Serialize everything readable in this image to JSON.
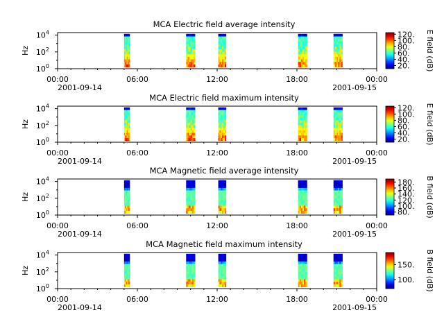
{
  "figure": {
    "background": "#ffffff"
  },
  "chart_data": [
    {
      "type": "heatmap",
      "title": "MCA  Electric field average intensity",
      "ylabel": "Hz",
      "colorbar_label": "E field (dB)",
      "colorbar_ticks": [
        "20.",
        "40.",
        "60.",
        "80.",
        "100.",
        "120."
      ],
      "colorbar_range": [
        10,
        125
      ],
      "yticks": [
        {
          "base": "10",
          "exp": "0"
        },
        {
          "base": "10",
          "exp": "2"
        },
        {
          "base": "10",
          "exp": "4"
        }
      ],
      "xticks": [
        "00:00",
        "06:00",
        "12:00",
        "18:00",
        "00:00"
      ],
      "date_start": "2001-09-14",
      "date_end": "2001-09-15",
      "style": "E",
      "intervals": [
        [
          "05:00",
          "05:25"
        ],
        [
          "09:40",
          "10:20"
        ],
        [
          "12:05",
          "12:40"
        ],
        [
          "18:05",
          "18:45"
        ],
        [
          "20:45",
          "21:25"
        ]
      ]
    },
    {
      "type": "heatmap",
      "title": "MCA  Electric field maximum intensity",
      "ylabel": "Hz",
      "colorbar_label": "E field (dB)",
      "colorbar_ticks": [
        "20.",
        "40.",
        "60.",
        "80.",
        "100.",
        "120."
      ],
      "colorbar_range": [
        10,
        125
      ],
      "yticks": [
        {
          "base": "10",
          "exp": "0"
        },
        {
          "base": "10",
          "exp": "2"
        },
        {
          "base": "10",
          "exp": "4"
        }
      ],
      "xticks": [
        "00:00",
        "06:00",
        "12:00",
        "18:00",
        "00:00"
      ],
      "date_start": "2001-09-14",
      "date_end": "2001-09-15",
      "style": "E",
      "intervals": [
        [
          "05:00",
          "05:25"
        ],
        [
          "09:40",
          "10:20"
        ],
        [
          "12:05",
          "12:40"
        ],
        [
          "18:05",
          "18:45"
        ],
        [
          "20:45",
          "21:25"
        ]
      ]
    },
    {
      "type": "heatmap",
      "title": "MCA  Magnetic field average intensity",
      "ylabel": "Hz",
      "colorbar_label": "B field (dB)",
      "colorbar_ticks": [
        "80.",
        "100.",
        "120.",
        "140.",
        "160.",
        "180."
      ],
      "colorbar_range": [
        70,
        190
      ],
      "yticks": [
        {
          "base": "10",
          "exp": "0"
        },
        {
          "base": "10",
          "exp": "2"
        },
        {
          "base": "10",
          "exp": "4"
        }
      ],
      "xticks": [
        "00:00",
        "06:00",
        "12:00",
        "18:00",
        "00:00"
      ],
      "date_start": "2001-09-14",
      "date_end": "2001-09-15",
      "style": "B",
      "intervals": [
        [
          "05:00",
          "05:25"
        ],
        [
          "09:40",
          "10:20"
        ],
        [
          "12:05",
          "12:40"
        ],
        [
          "18:05",
          "18:45"
        ],
        [
          "20:45",
          "21:25"
        ]
      ]
    },
    {
      "type": "heatmap",
      "title": "MCA  Magnetic field maximum intensity",
      "ylabel": "Hz",
      "colorbar_label": "B field (dB)",
      "colorbar_ticks": [
        "100.",
        "150."
      ],
      "colorbar_range": [
        70,
        190
      ],
      "yticks": [
        {
          "base": "10",
          "exp": "0"
        },
        {
          "base": "10",
          "exp": "2"
        },
        {
          "base": "10",
          "exp": "4"
        }
      ],
      "xticks": [
        "00:00",
        "06:00",
        "12:00",
        "18:00",
        "00:00"
      ],
      "date_start": "2001-09-14",
      "date_end": "2001-09-15",
      "style": "B",
      "intervals": [
        [
          "05:00",
          "05:25"
        ],
        [
          "09:40",
          "10:20"
        ],
        [
          "12:05",
          "12:40"
        ],
        [
          "18:05",
          "18:45"
        ],
        [
          "20:45",
          "21:25"
        ]
      ]
    }
  ]
}
